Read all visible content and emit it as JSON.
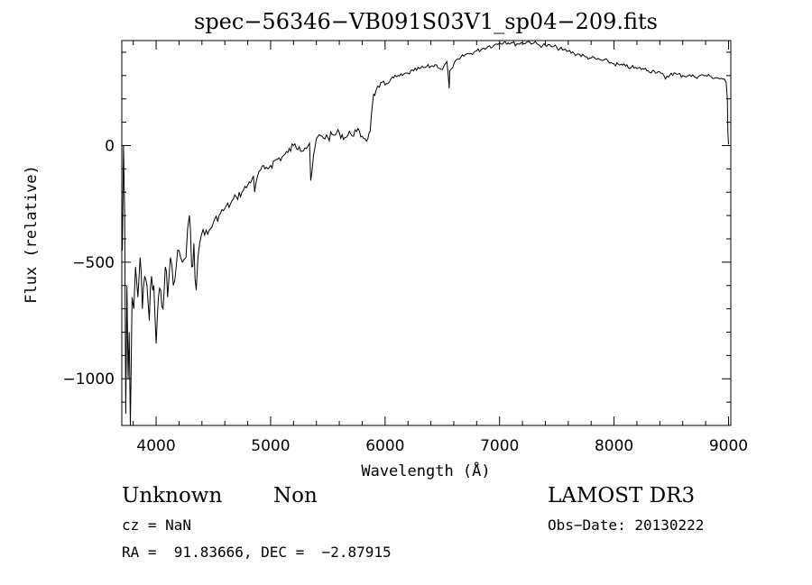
{
  "chart_data": {
    "type": "line",
    "title": "spec−56346−VB091S03V1_sp04−209.fits",
    "xlabel": "Wavelength (Å)",
    "ylabel": "Flux (relative)",
    "xlim": [
      3700,
      9020
    ],
    "ylim": [
      -1200,
      450
    ],
    "xticks": [
      4000,
      5000,
      6000,
      7000,
      8000,
      9000
    ],
    "xtick_labels": [
      "4000",
      "5000",
      "6000",
      "7000",
      "8000",
      "9000"
    ],
    "yticks": [
      -1000,
      -500,
      0
    ],
    "ytick_labels": [
      "−1000",
      "−500",
      "0"
    ],
    "line_color": "#000000",
    "series": [
      {
        "x": [
          3705,
          3715,
          3725,
          3735,
          3745,
          3755,
          3765,
          3775,
          3790,
          3805,
          3820,
          3840,
          3860,
          3880,
          3900,
          3920,
          3940,
          3960,
          3980,
          4000,
          4020,
          4040,
          4060,
          4080,
          4100,
          4125,
          4150,
          4175,
          4200,
          4230,
          4260,
          4290,
          4310,
          4330,
          4350,
          4380,
          4410,
          4450,
          4500,
          4550,
          4600,
          4650,
          4700,
          4750,
          4800,
          4850,
          4860,
          4900,
          4950,
          5000,
          5050,
          5100,
          5150,
          5200,
          5250,
          5300,
          5340,
          5350,
          5400,
          5450,
          5500,
          5550,
          5600,
          5650,
          5700,
          5750,
          5800,
          5850,
          5870,
          5880,
          5890,
          5900,
          5920,
          5950,
          6000,
          6050,
          6100,
          6150,
          6200,
          6250,
          6300,
          6350,
          6400,
          6450,
          6500,
          6540,
          6560,
          6565,
          6580,
          6600,
          6650,
          6700,
          6750,
          6800,
          6850,
          6900,
          6950,
          7000,
          7050,
          7100,
          7150,
          7200,
          7250,
          7300,
          7350,
          7400,
          7450,
          7500,
          7550,
          7600,
          7650,
          7700,
          7750,
          7800,
          7850,
          7900,
          7950,
          8000,
          8050,
          8100,
          8150,
          8200,
          8250,
          8300,
          8350,
          8400,
          8410,
          8450,
          8500,
          8550,
          8600,
          8650,
          8700,
          8750,
          8800,
          8850,
          8900,
          8950,
          8980,
          8990,
          8995,
          9000
        ],
        "y": [
          -450,
          0,
          -300,
          -1150,
          -600,
          -1000,
          -800,
          -1200,
          -650,
          -700,
          -520,
          -650,
          -480,
          -700,
          -560,
          -600,
          -750,
          -560,
          -600,
          -850,
          -650,
          -620,
          -700,
          -520,
          -650,
          -480,
          -600,
          -520,
          -450,
          -500,
          -480,
          -300,
          -520,
          -420,
          -620,
          -420,
          -360,
          -380,
          -330,
          -300,
          -270,
          -250,
          -220,
          -200,
          -170,
          -130,
          -200,
          -110,
          -100,
          -85,
          -60,
          -50,
          -30,
          0,
          -5,
          -10,
          10,
          -150,
          30,
          40,
          35,
          45,
          55,
          35,
          50,
          60,
          40,
          30,
          60,
          130,
          180,
          220,
          235,
          250,
          260,
          285,
          295,
          300,
          310,
          320,
          330,
          335,
          340,
          345,
          325,
          360,
          245,
          320,
          330,
          350,
          370,
          390,
          395,
          405,
          415,
          425,
          430,
          440,
          445,
          440,
          435,
          440,
          445,
          440,
          430,
          430,
          425,
          420,
          410,
          405,
          395,
          390,
          380,
          375,
          370,
          365,
          360,
          350,
          345,
          340,
          335,
          330,
          330,
          320,
          320,
          315,
          310,
          285,
          310,
          305,
          300,
          300,
          295,
          300,
          300,
          295,
          290,
          285,
          270,
          200,
          50,
          5
        ]
      }
    ]
  },
  "info": {
    "object_class": "Unknown",
    "object_subclass": "Non",
    "cz": "cz = NaN",
    "radec": "RA =  91.83666, DEC =  −2.87915",
    "survey": "LAMOST DR3",
    "obs_date": "Obs−Date: 20130222"
  }
}
